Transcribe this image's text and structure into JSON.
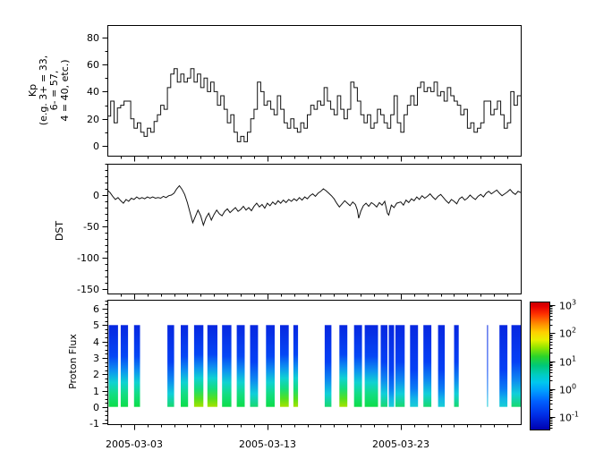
{
  "figure": {
    "background": "#ffffff",
    "line_color": "#111111",
    "x_axis": {
      "start_date": "2005-03-01",
      "range_days": [
        0,
        31
      ],
      "tick_labels": [
        "2005-03-03",
        "2005-03-13",
        "2005-03-23"
      ],
      "tick_days": [
        2,
        12,
        22
      ],
      "minor_every_days": 1
    }
  },
  "chart_data": [
    {
      "name": "kp",
      "type": "line",
      "line_style": "step",
      "title": "",
      "ylabel": "Kp\n(e.g. 3+ = 33,\n6- = 57,\n4 = 40, etc.)",
      "yticks": [
        0,
        20,
        40,
        60,
        80
      ],
      "minor_y": 10,
      "ylim": [
        -7.3,
        89.2
      ],
      "grid": false,
      "step_hours": 6,
      "values": [
        22,
        33,
        17,
        28,
        30,
        33,
        33,
        20,
        13,
        17,
        10,
        7,
        13,
        10,
        18,
        23,
        30,
        27,
        43,
        53,
        57,
        47,
        53,
        47,
        50,
        57,
        47,
        53,
        43,
        50,
        40,
        47,
        40,
        30,
        37,
        27,
        17,
        23,
        10,
        3,
        7,
        3,
        10,
        20,
        27,
        47,
        40,
        30,
        33,
        27,
        23,
        37,
        27,
        17,
        13,
        20,
        13,
        10,
        17,
        13,
        23,
        30,
        27,
        33,
        30,
        43,
        33,
        27,
        23,
        37,
        27,
        20,
        27,
        47,
        43,
        33,
        23,
        17,
        23,
        13,
        17,
        27,
        23,
        17,
        13,
        23,
        37,
        17,
        10,
        23,
        30,
        37,
        30,
        43,
        47,
        40,
        43,
        40,
        47,
        37,
        40,
        33,
        43,
        37,
        33,
        30,
        23,
        27,
        13,
        17,
        10,
        13,
        17,
        33,
        33,
        23,
        27,
        33,
        23,
        13,
        17,
        40,
        30,
        37
      ]
    },
    {
      "name": "dst",
      "type": "line",
      "line_style": "plain",
      "title": "",
      "ylabel": "DST",
      "yticks": [
        0,
        -50,
        -100,
        -150
      ],
      "minor_y": 10,
      "ylim": [
        -157,
        50
      ],
      "grid": false,
      "points": [
        [
          0,
          8
        ],
        [
          0.2,
          4
        ],
        [
          0.4,
          -2
        ],
        [
          0.6,
          -7
        ],
        [
          0.8,
          -4
        ],
        [
          1,
          -9
        ],
        [
          1.2,
          -13
        ],
        [
          1.4,
          -7
        ],
        [
          1.6,
          -10
        ],
        [
          1.8,
          -5
        ],
        [
          2,
          -7
        ],
        [
          2.2,
          -3
        ],
        [
          2.4,
          -6
        ],
        [
          2.6,
          -4
        ],
        [
          2.8,
          -6
        ],
        [
          3,
          -3
        ],
        [
          3.2,
          -5
        ],
        [
          3.4,
          -3
        ],
        [
          3.6,
          -5
        ],
        [
          3.8,
          -4
        ],
        [
          4,
          -5
        ],
        [
          4.2,
          -2
        ],
        [
          4.4,
          -4
        ],
        [
          4.6,
          -1
        ],
        [
          4.8,
          0
        ],
        [
          5,
          3
        ],
        [
          5.2,
          10
        ],
        [
          5.4,
          15
        ],
        [
          5.6,
          9
        ],
        [
          5.8,
          1
        ],
        [
          6,
          -12
        ],
        [
          6.2,
          -28
        ],
        [
          6.4,
          -44
        ],
        [
          6.6,
          -34
        ],
        [
          6.8,
          -24
        ],
        [
          7,
          -33
        ],
        [
          7.2,
          -48
        ],
        [
          7.4,
          -36
        ],
        [
          7.6,
          -29
        ],
        [
          7.8,
          -40
        ],
        [
          8,
          -31
        ],
        [
          8.2,
          -24
        ],
        [
          8.4,
          -30
        ],
        [
          8.6,
          -33
        ],
        [
          8.8,
          -26
        ],
        [
          9,
          -22
        ],
        [
          9.2,
          -28
        ],
        [
          9.4,
          -24
        ],
        [
          9.6,
          -20
        ],
        [
          9.8,
          -26
        ],
        [
          10,
          -23
        ],
        [
          10.2,
          -18
        ],
        [
          10.4,
          -24
        ],
        [
          10.6,
          -20
        ],
        [
          10.8,
          -25
        ],
        [
          11,
          -18
        ],
        [
          11.2,
          -13
        ],
        [
          11.4,
          -19
        ],
        [
          11.6,
          -15
        ],
        [
          11.8,
          -21
        ],
        [
          12,
          -13
        ],
        [
          12.2,
          -17
        ],
        [
          12.4,
          -11
        ],
        [
          12.6,
          -15
        ],
        [
          12.8,
          -9
        ],
        [
          13,
          -13
        ],
        [
          13.2,
          -8
        ],
        [
          13.4,
          -12
        ],
        [
          13.6,
          -7
        ],
        [
          13.8,
          -10
        ],
        [
          14,
          -6
        ],
        [
          14.2,
          -9
        ],
        [
          14.4,
          -4
        ],
        [
          14.6,
          -8
        ],
        [
          14.8,
          -3
        ],
        [
          15,
          -6
        ],
        [
          15.2,
          -1
        ],
        [
          15.4,
          2
        ],
        [
          15.6,
          -2
        ],
        [
          15.8,
          3
        ],
        [
          16,
          6
        ],
        [
          16.2,
          10
        ],
        [
          16.4,
          7
        ],
        [
          16.6,
          3
        ],
        [
          16.8,
          -1
        ],
        [
          17,
          -6
        ],
        [
          17.2,
          -13
        ],
        [
          17.4,
          -19
        ],
        [
          17.6,
          -14
        ],
        [
          17.8,
          -9
        ],
        [
          18,
          -13
        ],
        [
          18.2,
          -17
        ],
        [
          18.4,
          -11
        ],
        [
          18.6,
          -15
        ],
        [
          18.75,
          -24
        ],
        [
          18.85,
          -37
        ],
        [
          19,
          -26
        ],
        [
          19.2,
          -17
        ],
        [
          19.4,
          -13
        ],
        [
          19.6,
          -18
        ],
        [
          19.8,
          -12
        ],
        [
          20,
          -15
        ],
        [
          20.2,
          -19
        ],
        [
          20.4,
          -12
        ],
        [
          20.6,
          -16
        ],
        [
          20.8,
          -10
        ],
        [
          21,
          -29
        ],
        [
          21.1,
          -32
        ],
        [
          21.3,
          -16
        ],
        [
          21.5,
          -20
        ],
        [
          21.7,
          -13
        ],
        [
          22,
          -11
        ],
        [
          22.2,
          -16
        ],
        [
          22.4,
          -8
        ],
        [
          22.6,
          -12
        ],
        [
          22.8,
          -6
        ],
        [
          23,
          -9
        ],
        [
          23.2,
          -3
        ],
        [
          23.4,
          -7
        ],
        [
          23.6,
          -1
        ],
        [
          23.8,
          -5
        ],
        [
          24,
          -2
        ],
        [
          24.2,
          2
        ],
        [
          24.4,
          -3
        ],
        [
          24.6,
          -7
        ],
        [
          24.8,
          -2
        ],
        [
          25,
          1
        ],
        [
          25.2,
          -4
        ],
        [
          25.4,
          -9
        ],
        [
          25.6,
          -13
        ],
        [
          25.8,
          -7
        ],
        [
          26,
          -10
        ],
        [
          26.2,
          -14
        ],
        [
          26.4,
          -6
        ],
        [
          26.6,
          -3
        ],
        [
          26.8,
          -8
        ],
        [
          27,
          -5
        ],
        [
          27.2,
          0
        ],
        [
          27.4,
          -4
        ],
        [
          27.6,
          -7
        ],
        [
          27.8,
          -2
        ],
        [
          28,
          1
        ],
        [
          28.2,
          -3
        ],
        [
          28.4,
          3
        ],
        [
          28.6,
          6
        ],
        [
          28.8,
          2
        ],
        [
          29,
          5
        ],
        [
          29.2,
          8
        ],
        [
          29.4,
          3
        ],
        [
          29.6,
          -1
        ],
        [
          29.8,
          2
        ],
        [
          30,
          5
        ],
        [
          30.2,
          9
        ],
        [
          30.4,
          4
        ],
        [
          30.6,
          1
        ],
        [
          30.8,
          6
        ],
        [
          31,
          4
        ]
      ]
    },
    {
      "name": "proton-flux",
      "type": "heatmap",
      "title": "",
      "ylabel": "Proton Flux",
      "yticks": [
        -1,
        0,
        1,
        2,
        3,
        4,
        5,
        6
      ],
      "minor_y": 0.25,
      "ylim": [
        -1.05,
        6.55
      ],
      "grid": false,
      "bar_value_range": [
        0,
        5
      ],
      "bars": [
        {
          "start_day": 0.1,
          "end_day": 0.8,
          "intensity": 2
        },
        {
          "start_day": 1.0,
          "end_day": 1.55,
          "intensity": 2
        },
        {
          "start_day": 2.0,
          "end_day": 2.45,
          "intensity": 2
        },
        {
          "start_day": 4.5,
          "end_day": 5.0,
          "intensity": 1
        },
        {
          "start_day": 5.5,
          "end_day": 6.05,
          "intensity": 2
        },
        {
          "start_day": 6.5,
          "end_day": 7.2,
          "intensity": 3
        },
        {
          "start_day": 7.5,
          "end_day": 8.25,
          "intensity": 3
        },
        {
          "start_day": 8.6,
          "end_day": 9.3,
          "intensity": 2
        },
        {
          "start_day": 9.7,
          "end_day": 10.3,
          "intensity": 2
        },
        {
          "start_day": 10.7,
          "end_day": 11.3,
          "intensity": 1
        },
        {
          "start_day": 11.9,
          "end_day": 12.55,
          "intensity": 2
        },
        {
          "start_day": 12.95,
          "end_day": 13.6,
          "intensity": 3
        },
        {
          "start_day": 13.95,
          "end_day": 14.3,
          "intensity": 3
        },
        {
          "start_day": 16.3,
          "end_day": 16.8,
          "intensity": 1
        },
        {
          "start_day": 17.4,
          "end_day": 18.0,
          "intensity": 3
        },
        {
          "start_day": 18.5,
          "end_day": 19.1,
          "intensity": 2
        },
        {
          "start_day": 19.3,
          "end_day": 20.3,
          "intensity": 2
        },
        {
          "start_day": 20.5,
          "end_day": 21.0,
          "intensity": 1
        },
        {
          "start_day": 21.1,
          "end_day": 21.5,
          "intensity": 0
        },
        {
          "start_day": 21.6,
          "end_day": 22.3,
          "intensity": 1
        },
        {
          "start_day": 22.7,
          "end_day": 23.3,
          "intensity": 0
        },
        {
          "start_day": 23.7,
          "end_day": 24.3,
          "intensity": 1
        },
        {
          "start_day": 24.8,
          "end_day": 25.3,
          "intensity": 0
        },
        {
          "start_day": 26.0,
          "end_day": 26.35,
          "intensity": 1
        },
        {
          "start_day": 28.48,
          "end_day": 28.55,
          "intensity": 0
        },
        {
          "start_day": 29.4,
          "end_day": 30.0,
          "intensity": 0
        },
        {
          "start_day": 30.3,
          "end_day": 31.0,
          "intensity": 1
        }
      ],
      "intensity_gradients": {
        "0": [
          [
            0,
            "#0727e0"
          ],
          [
            0.55,
            "#0540f5"
          ],
          [
            0.78,
            "#0a7cf5"
          ],
          [
            0.9,
            "#12b4e8"
          ],
          [
            1,
            "#19cfd4"
          ]
        ],
        "1": [
          [
            0,
            "#0727e0"
          ],
          [
            0.45,
            "#0540f5"
          ],
          [
            0.68,
            "#0e8cf0"
          ],
          [
            0.84,
            "#10cfd9"
          ],
          [
            1,
            "#17d96e"
          ]
        ],
        "2": [
          [
            0,
            "#0727e0"
          ],
          [
            0.38,
            "#0546f5"
          ],
          [
            0.56,
            "#0e93f0"
          ],
          [
            0.7,
            "#0fd2d2"
          ],
          [
            0.84,
            "#12dd84"
          ],
          [
            1,
            "#0ddd48"
          ]
        ],
        "3": [
          [
            0,
            "#0727e0"
          ],
          [
            0.36,
            "#0546f5"
          ],
          [
            0.52,
            "#0e93f0"
          ],
          [
            0.65,
            "#0fd2d2"
          ],
          [
            0.78,
            "#15dd7a"
          ],
          [
            0.9,
            "#55e01e"
          ],
          [
            1,
            "#a5e300"
          ]
        ]
      },
      "colorbar": {
        "scale": "log",
        "label_base": "10",
        "label_exponents": [
          3,
          2,
          1,
          0,
          -1
        ],
        "log_range": [
          -1.45,
          3.13
        ],
        "colormap": "jet",
        "colormap_stops": [
          [
            0,
            "#c00000"
          ],
          [
            0.04,
            "#e60000"
          ],
          [
            0.1,
            "#ff3300"
          ],
          [
            0.17,
            "#ff8800"
          ],
          [
            0.24,
            "#ffd000"
          ],
          [
            0.3,
            "#e8f000"
          ],
          [
            0.36,
            "#92e600"
          ],
          [
            0.43,
            "#2ad42a"
          ],
          [
            0.5,
            "#00c878"
          ],
          [
            0.57,
            "#00ccc0"
          ],
          [
            0.63,
            "#00c8ee"
          ],
          [
            0.7,
            "#009cff"
          ],
          [
            0.78,
            "#0060ff"
          ],
          [
            0.88,
            "#0030e8"
          ],
          [
            1,
            "#0000b0"
          ]
        ]
      }
    }
  ]
}
